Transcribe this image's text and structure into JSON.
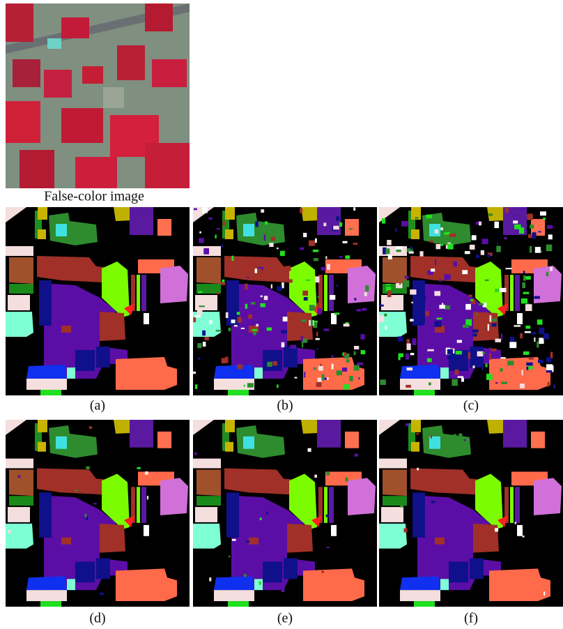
{
  "figure": {
    "false_color_caption": "False-color image",
    "panels": [
      "(a)",
      "(b)",
      "(c)",
      "(d)",
      "(e)",
      "(f)"
    ]
  }
}
